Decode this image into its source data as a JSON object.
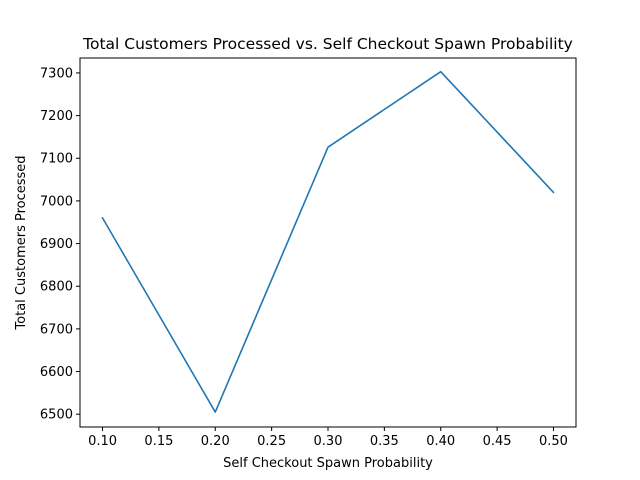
{
  "chart_data": {
    "type": "line",
    "title": "Total Customers Processed vs. Self Checkout Spawn Probability",
    "xlabel": "Self Checkout Spawn Probability",
    "ylabel": "Total Customers Processed",
    "xlim": [
      0.08,
      0.52
    ],
    "ylim": [
      6470,
      7335
    ],
    "xticks": [
      0.1,
      0.15,
      0.2,
      0.25,
      0.3,
      0.35,
      0.4,
      0.45,
      0.5
    ],
    "xtick_labels": [
      "0.10",
      "0.15",
      "0.20",
      "0.25",
      "0.30",
      "0.35",
      "0.40",
      "0.45",
      "0.50"
    ],
    "yticks": [
      6500,
      6600,
      6700,
      6800,
      6900,
      7000,
      7100,
      7200,
      7300
    ],
    "ytick_labels": [
      "6500",
      "6600",
      "6700",
      "6800",
      "6900",
      "7000",
      "7100",
      "7200",
      "7300"
    ],
    "grid": false,
    "series": [
      {
        "x": [
          0.1,
          0.2,
          0.3,
          0.4,
          0.5
        ],
        "y": [
          6960,
          6505,
          7126,
          7303,
          7020
        ],
        "color": "#1f77b4"
      }
    ]
  }
}
